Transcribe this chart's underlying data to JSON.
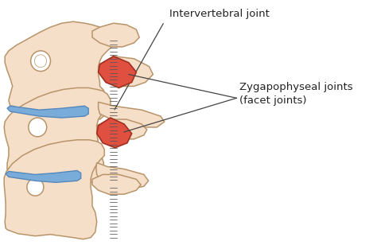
{
  "bg_color": "#ffffff",
  "bone_color": "#f5dfc8",
  "bone_outline": "#b8946a",
  "bone_outline2": "#7a5a30",
  "disc_color": "#7aacda",
  "disc_outline": "#5588bb",
  "facet_color": "#e05040",
  "facet_outline": "#a03020",
  "spine_color": "#555555",
  "line_color": "#444444",
  "text_color": "#222222",
  "label_intervertebral": "Intervertebral joint",
  "label_zygapophyseal_1": "Zygapophyseal joints",
  "label_zygapophyseal_2": "(facet joints)",
  "font_size_labels": 9.5,
  "figsize": [
    4.74,
    3.08
  ],
  "dpi": 100
}
